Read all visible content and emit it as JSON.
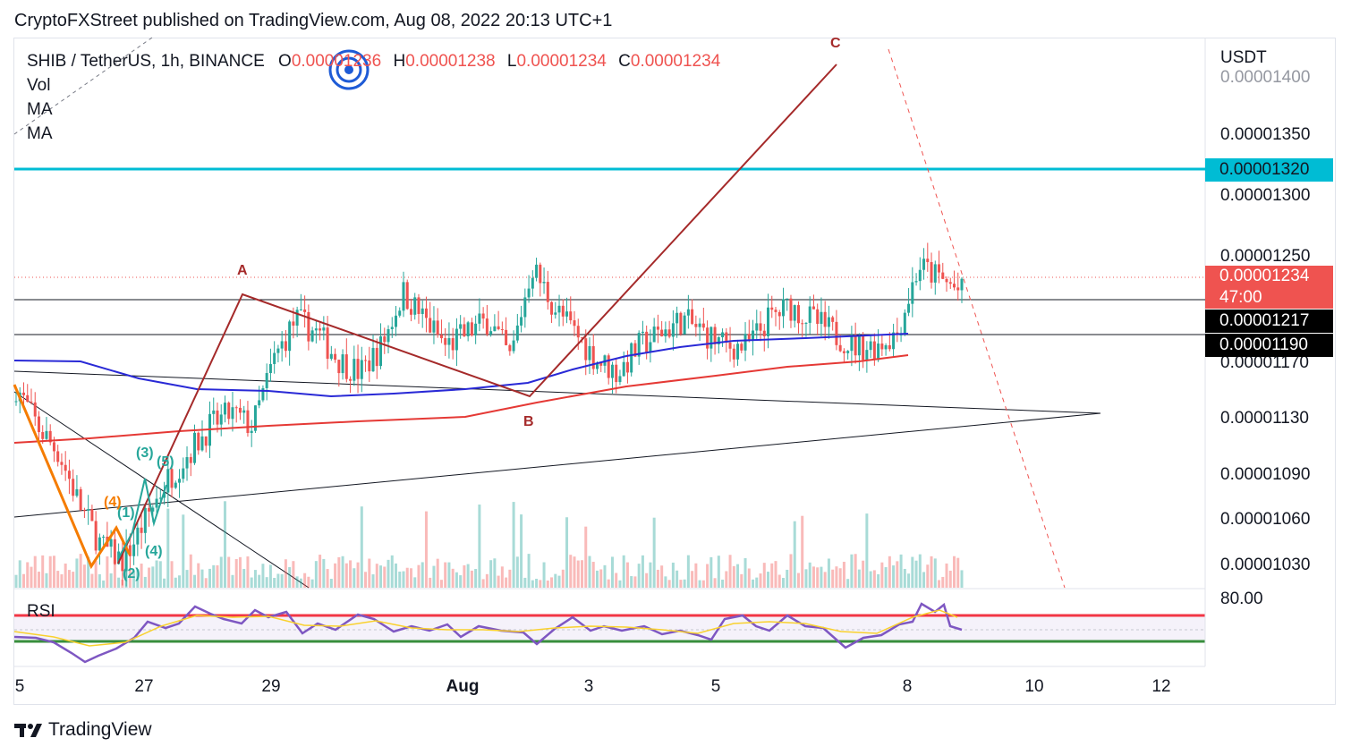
{
  "header": {
    "published": "CryptoFXStreet published on TradingView.com, Aug 08, 2022 20:13 UTC+1"
  },
  "legend": {
    "symbol": "SHIB / TetherUS, 1h, BINANCE",
    "o_key": "O",
    "o_val": "0.00001236",
    "h_key": "H",
    "h_val": "0.00001238",
    "l_key": "L",
    "l_val": "0.00001234",
    "c_key": "C",
    "c_val": "0.00001234",
    "vol": "Vol",
    "ma1": "MA",
    "ma2": "MA",
    "rsi": "RSI"
  },
  "axis": {
    "currency": "USDT",
    "prices": [
      "0.00001400",
      "0.00001350",
      "0.00001300",
      "0.00001250",
      "0.00001170",
      "0.00001130",
      "0.00001090",
      "0.00001060",
      "0.00001030"
    ],
    "rsi_level": "80.00",
    "times": [
      "5",
      "27",
      "29",
      "Aug",
      "3",
      "5",
      "8",
      "10",
      "12"
    ]
  },
  "tags": {
    "resistance": "0.00001320",
    "last_price": "0.00001234",
    "countdown": "47:00",
    "level1": "0.00001217",
    "level2": "0.00001190"
  },
  "waves": {
    "A": "A",
    "B": "B",
    "C": "C",
    "g3": "(3)",
    "g5": "(5)",
    "g1": "(1)",
    "g4": "(4)",
    "g2": "(2)",
    "o4": "(4)"
  },
  "footer": {
    "brand": "TradingView"
  },
  "colors": {
    "up": "#26a69a",
    "down": "#ef5350",
    "ma_blue": "#2929d6",
    "ma_red": "#e53935",
    "cyan": "#00bcd4",
    "wave_red": "#a52a2a",
    "orange": "#f57c00",
    "rsi": "#7e57c2"
  },
  "chart_data": {
    "type": "candlestick",
    "symbol": "SHIB / TetherUS",
    "interval": "1h",
    "exchange": "BINANCE",
    "y_range": [
      1.01e-05,
      1.42e-05
    ],
    "last_close": 1.234e-05,
    "horizontal_levels": [
      1.32e-05,
      1.217e-05,
      1.19e-05
    ],
    "close_path": [
      1.16e-05,
      1.13e-05,
      1.11e-05,
      1.07e-05,
      1.04e-05,
      1.03e-05,
      1.06e-05,
      1.09e-05,
      1.11e-05,
      1.13e-05,
      1.14e-05,
      1.13e-05,
      1.18e-05,
      1.21e-05,
      1.2e-05,
      1.18e-05,
      1.17e-05,
      1.19e-05,
      1.23e-05,
      1.21e-05,
      1.19e-05,
      1.2e-05,
      1.21e-05,
      1.18e-05,
      1.25e-05,
      1.22e-05,
      1.2e-05,
      1.18e-05,
      1.17e-05,
      1.19e-05,
      1.2e-05,
      1.21e-05,
      1.2e-05,
      1.19e-05,
      1.19e-05,
      1.21e-05,
      1.22e-05,
      1.21e-05,
      1.2e-05,
      1.19e-05,
      1.19e-05,
      1.2e-05,
      1.25e-05,
      1.24e-05,
      1.23e-05
    ],
    "rsi": {
      "level": 80
    }
  }
}
